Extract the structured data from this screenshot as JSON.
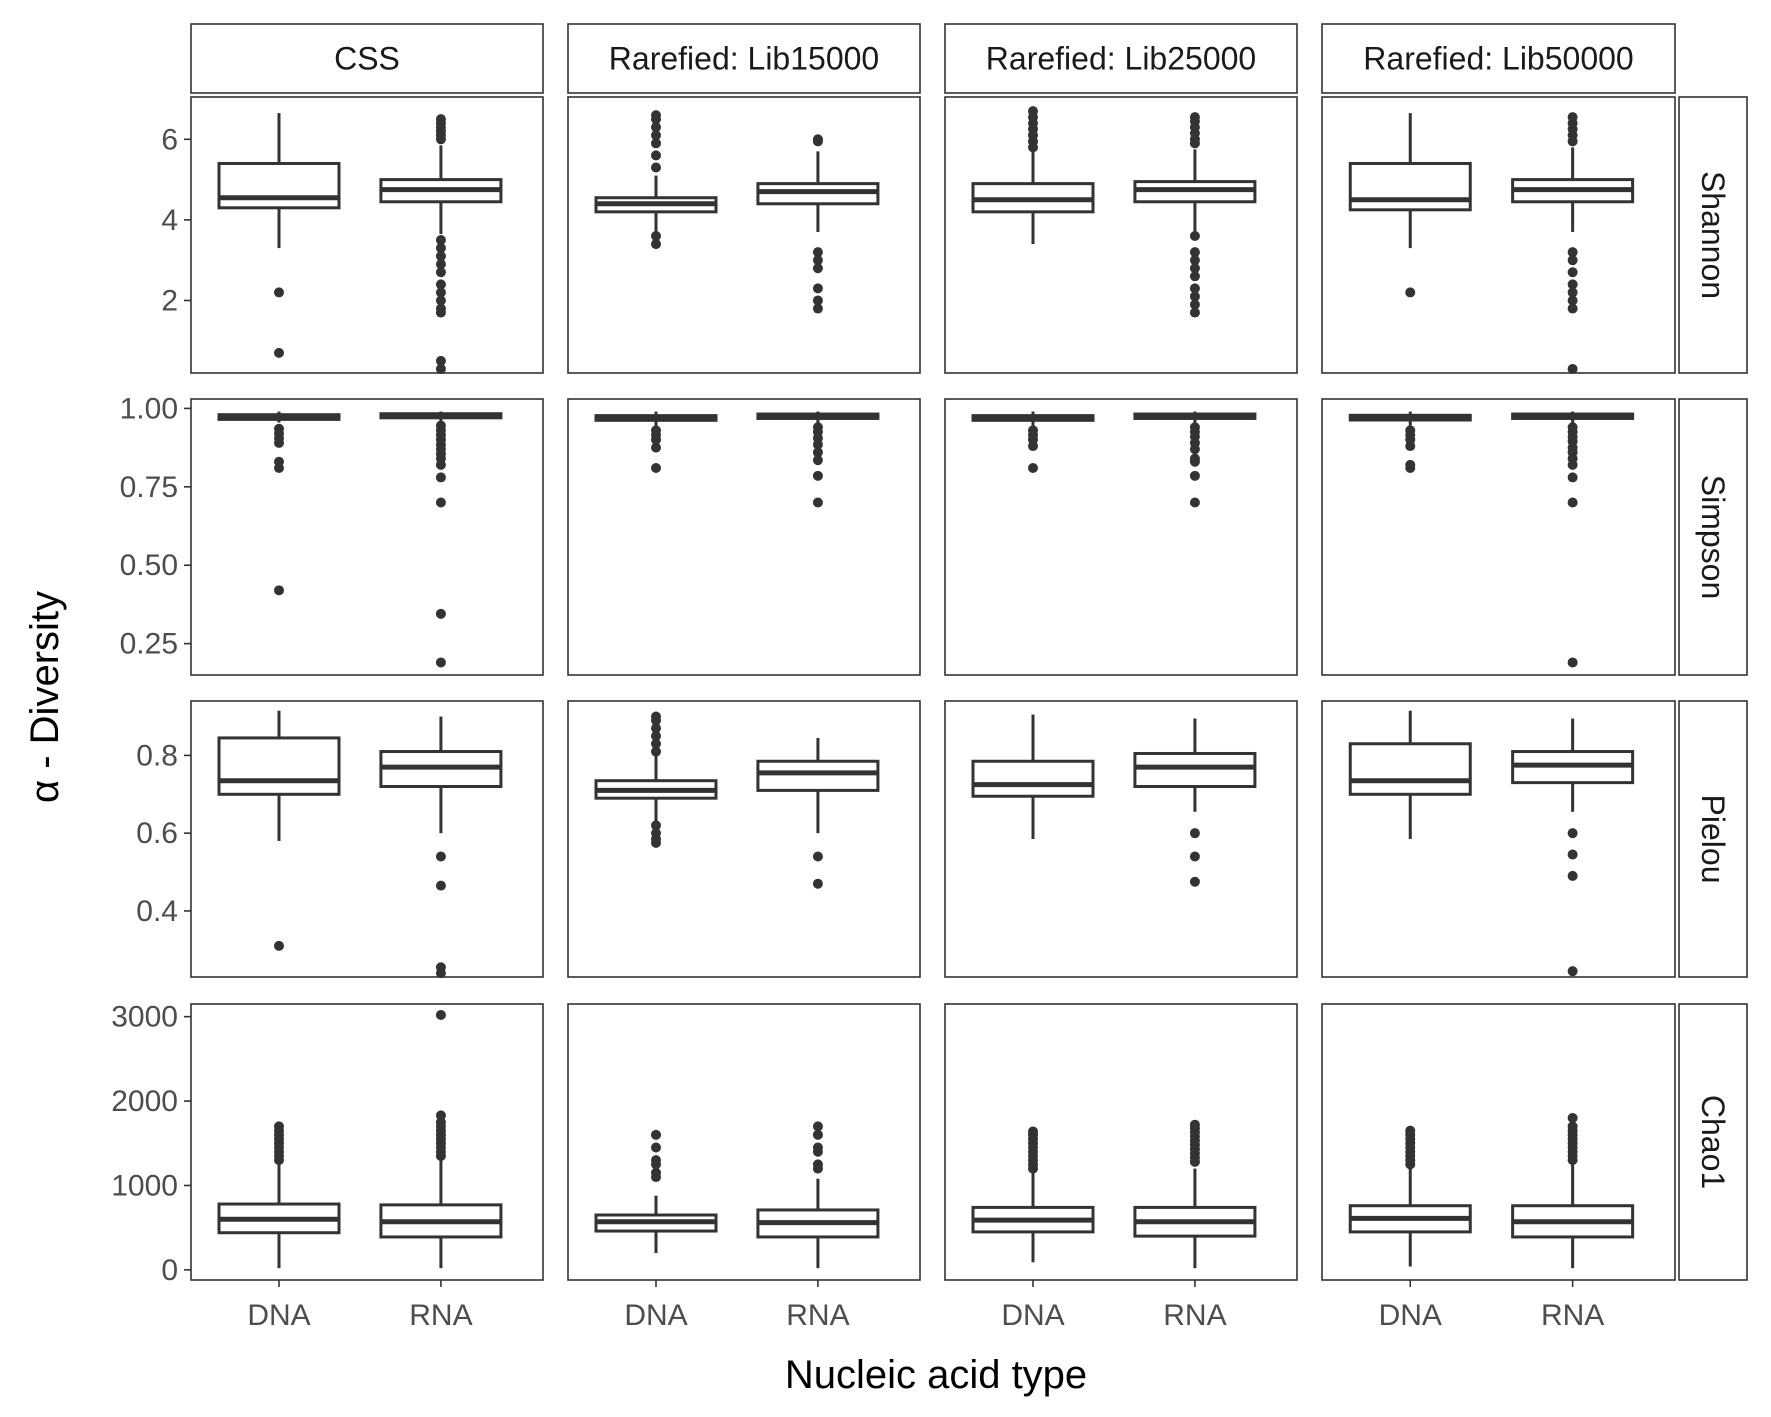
{
  "colors": {
    "box_line": "#333333",
    "panel_border": "#333333",
    "strip_bg": "#ffffff",
    "background": "#ffffff",
    "tick_text": "#4d4d4d",
    "title_text": "#000000"
  },
  "chart_data": {
    "type": "boxplot",
    "xlabel": "Nucleic acid type",
    "ylabel": "α - Diversity",
    "columns": [
      "CSS",
      "Rarefied: Lib15000",
      "Rarefied: Lib25000",
      "Rarefied: Lib50000"
    ],
    "categories": [
      "DNA",
      "RNA"
    ],
    "grid": false,
    "rows": [
      {
        "name": "Shannon",
        "ylim": [
          0.2,
          7.05
        ],
        "ticks": [
          2,
          4,
          6
        ],
        "tick_labels": [
          "2",
          "4",
          "6"
        ],
        "boxes": [
          [
            {
              "q1": 4.3,
              "median": 4.55,
              "q3": 5.4,
              "whisker_low": 3.3,
              "whisker_high": 6.65,
              "outliers": [
                2.2,
                0.7
              ]
            },
            {
              "q1": 4.45,
              "median": 4.75,
              "q3": 5.0,
              "whisker_low": 3.65,
              "whisker_high": 5.85,
              "outliers": [
                6.0,
                6.1,
                6.2,
                6.3,
                6.4,
                6.5,
                3.5,
                3.3,
                3.1,
                2.9,
                2.7,
                2.4,
                2.2,
                2.0,
                1.8,
                1.7,
                0.5,
                0.3
              ]
            }
          ],
          [
            {
              "q1": 4.2,
              "median": 4.4,
              "q3": 4.55,
              "whisker_low": 3.6,
              "whisker_high": 5.1,
              "outliers": [
                5.3,
                5.6,
                5.9,
                6.1,
                6.3,
                6.5,
                6.6,
                3.6,
                3.4
              ]
            },
            {
              "q1": 4.4,
              "median": 4.7,
              "q3": 4.9,
              "whisker_low": 3.7,
              "whisker_high": 5.7,
              "outliers": [
                5.95,
                6.0,
                3.2,
                3.0,
                2.8,
                2.3,
                2.0,
                1.8
              ]
            }
          ],
          [
            {
              "q1": 4.2,
              "median": 4.5,
              "q3": 4.9,
              "whisker_low": 3.4,
              "whisker_high": 5.7,
              "outliers": [
                5.8,
                5.95,
                6.1,
                6.25,
                6.4,
                6.55,
                6.7
              ]
            },
            {
              "q1": 4.45,
              "median": 4.75,
              "q3": 4.95,
              "whisker_low": 3.7,
              "whisker_high": 5.75,
              "outliers": [
                5.9,
                6.0,
                6.15,
                6.3,
                6.45,
                6.55,
                3.6,
                3.2,
                3.0,
                2.8,
                2.6,
                2.3,
                2.1,
                1.9,
                1.7
              ]
            }
          ],
          [
            {
              "q1": 4.25,
              "median": 4.5,
              "q3": 5.4,
              "whisker_low": 3.3,
              "whisker_high": 6.65,
              "outliers": [
                2.2
              ]
            },
            {
              "q1": 4.45,
              "median": 4.75,
              "q3": 5.0,
              "whisker_low": 3.7,
              "whisker_high": 5.8,
              "outliers": [
                5.95,
                6.1,
                6.25,
                6.4,
                6.55,
                3.2,
                3.0,
                2.7,
                2.4,
                2.2,
                2.0,
                1.8,
                0.3
              ]
            }
          ]
        ]
      },
      {
        "name": "Simpson",
        "ylim": [
          0.15,
          1.03
        ],
        "ticks": [
          0.25,
          0.5,
          0.75,
          1.0
        ],
        "tick_labels": [
          "0.25",
          "0.50",
          "0.75",
          "1.00"
        ],
        "boxes": [
          [
            {
              "q1": 0.965,
              "median": 0.975,
              "q3": 0.98,
              "whisker_low": 0.955,
              "whisker_high": 0.99,
              "outliers": [
                0.935,
                0.92,
                0.905,
                0.89,
                0.83,
                0.81,
                0.42
              ]
            },
            {
              "q1": 0.97,
              "median": 0.978,
              "q3": 0.983,
              "whisker_low": 0.96,
              "whisker_high": 0.99,
              "outliers": [
                0.945,
                0.93,
                0.915,
                0.9,
                0.885,
                0.87,
                0.855,
                0.84,
                0.82,
                0.78,
                0.7,
                0.345,
                0.19
              ]
            }
          ],
          [
            {
              "q1": 0.962,
              "median": 0.97,
              "q3": 0.977,
              "whisker_low": 0.945,
              "whisker_high": 0.99,
              "outliers": [
                0.93,
                0.915,
                0.9,
                0.875,
                0.81
              ]
            },
            {
              "q1": 0.968,
              "median": 0.976,
              "q3": 0.982,
              "whisker_low": 0.955,
              "whisker_high": 0.99,
              "outliers": [
                0.94,
                0.925,
                0.905,
                0.885,
                0.86,
                0.835,
                0.785,
                0.7
              ]
            }
          ],
          [
            {
              "q1": 0.962,
              "median": 0.97,
              "q3": 0.977,
              "whisker_low": 0.945,
              "whisker_high": 0.99,
              "outliers": [
                0.93,
                0.915,
                0.9,
                0.88,
                0.81
              ]
            },
            {
              "q1": 0.968,
              "median": 0.976,
              "q3": 0.982,
              "whisker_low": 0.955,
              "whisker_high": 0.99,
              "outliers": [
                0.94,
                0.925,
                0.91,
                0.89,
                0.87,
                0.84,
                0.83,
                0.785,
                0.7
              ]
            }
          ],
          [
            {
              "q1": 0.963,
              "median": 0.972,
              "q3": 0.978,
              "whisker_low": 0.945,
              "whisker_high": 0.99,
              "outliers": [
                0.93,
                0.915,
                0.9,
                0.88,
                0.82,
                0.81
              ]
            },
            {
              "q1": 0.968,
              "median": 0.976,
              "q3": 0.982,
              "whisker_low": 0.955,
              "whisker_high": 0.99,
              "outliers": [
                0.94,
                0.925,
                0.91,
                0.895,
                0.875,
                0.86,
                0.84,
                0.82,
                0.78,
                0.7,
                0.19
              ]
            }
          ]
        ]
      },
      {
        "name": "Pielou",
        "ylim": [
          0.23,
          0.94
        ],
        "ticks": [
          0.4,
          0.6,
          0.8
        ],
        "tick_labels": [
          "0.4",
          "0.6",
          "0.8"
        ],
        "boxes": [
          [
            {
              "q1": 0.7,
              "median": 0.735,
              "q3": 0.845,
              "whisker_low": 0.58,
              "whisker_high": 0.915,
              "outliers": [
                0.31
              ]
            },
            {
              "q1": 0.72,
              "median": 0.77,
              "q3": 0.81,
              "whisker_low": 0.6,
              "whisker_high": 0.9,
              "outliers": [
                0.54,
                0.465,
                0.255,
                0.24
              ]
            }
          ],
          [
            {
              "q1": 0.69,
              "median": 0.71,
              "q3": 0.735,
              "whisker_low": 0.63,
              "whisker_high": 0.8,
              "outliers": [
                0.81,
                0.83,
                0.85,
                0.87,
                0.89,
                0.9,
                0.62,
                0.6,
                0.585,
                0.575
              ]
            },
            {
              "q1": 0.71,
              "median": 0.755,
              "q3": 0.785,
              "whisker_low": 0.6,
              "whisker_high": 0.845,
              "outliers": [
                0.54,
                0.47
              ]
            }
          ],
          [
            {
              "q1": 0.695,
              "median": 0.725,
              "q3": 0.785,
              "whisker_low": 0.585,
              "whisker_high": 0.905,
              "outliers": []
            },
            {
              "q1": 0.72,
              "median": 0.77,
              "q3": 0.805,
              "whisker_low": 0.655,
              "whisker_high": 0.895,
              "outliers": [
                0.6,
                0.54,
                0.475
              ]
            }
          ],
          [
            {
              "q1": 0.7,
              "median": 0.735,
              "q3": 0.83,
              "whisker_low": 0.585,
              "whisker_high": 0.915,
              "outliers": []
            },
            {
              "q1": 0.73,
              "median": 0.775,
              "q3": 0.81,
              "whisker_low": 0.655,
              "whisker_high": 0.895,
              "outliers": [
                0.6,
                0.545,
                0.49,
                0.245
              ]
            }
          ]
        ]
      },
      {
        "name": "Chao1",
        "ylim": [
          -120,
          3150
        ],
        "ticks": [
          0,
          1000,
          2000,
          3000
        ],
        "tick_labels": [
          "0",
          "1000",
          "2000",
          "3000"
        ],
        "boxes": [
          [
            {
              "q1": 440,
              "median": 600,
              "q3": 780,
              "whisker_low": 20,
              "whisker_high": 1250,
              "outliers": [
                1300,
                1350,
                1400,
                1450,
                1500,
                1550,
                1600,
                1650,
                1700
              ]
            },
            {
              "q1": 390,
              "median": 570,
              "q3": 770,
              "whisker_low": 20,
              "whisker_high": 1300,
              "outliers": [
                1350,
                1400,
                1450,
                1500,
                1550,
                1600,
                1650,
                1700,
                1750,
                1830,
                3020
              ]
            }
          ],
          [
            {
              "q1": 460,
              "median": 570,
              "q3": 650,
              "whisker_low": 200,
              "whisker_high": 880,
              "outliers": [
                1100,
                1150,
                1250,
                1300,
                1450,
                1600
              ]
            },
            {
              "q1": 390,
              "median": 560,
              "q3": 710,
              "whisker_low": 20,
              "whisker_high": 1080,
              "outliers": [
                1200,
                1250,
                1400,
                1450,
                1600,
                1700
              ]
            }
          ],
          [
            {
              "q1": 450,
              "median": 590,
              "q3": 740,
              "whisker_low": 90,
              "whisker_high": 1150,
              "outliers": [
                1200,
                1250,
                1300,
                1350,
                1400,
                1450,
                1500,
                1550,
                1600,
                1640
              ]
            },
            {
              "q1": 400,
              "median": 570,
              "q3": 740,
              "whisker_low": 20,
              "whisker_high": 1200,
              "outliers": [
                1280,
                1330,
                1380,
                1430,
                1480,
                1530,
                1580,
                1630,
                1680,
                1720
              ]
            }
          ],
          [
            {
              "q1": 450,
              "median": 610,
              "q3": 760,
              "whisker_low": 40,
              "whisker_high": 1200,
              "outliers": [
                1250,
                1300,
                1350,
                1400,
                1450,
                1500,
                1550,
                1600,
                1650
              ]
            },
            {
              "q1": 390,
              "median": 570,
              "q3": 760,
              "whisker_low": 20,
              "whisker_high": 1250,
              "outliers": [
                1300,
                1350,
                1400,
                1450,
                1500,
                1550,
                1600,
                1650,
                1700,
                1800
              ]
            }
          ]
        ]
      }
    ]
  }
}
